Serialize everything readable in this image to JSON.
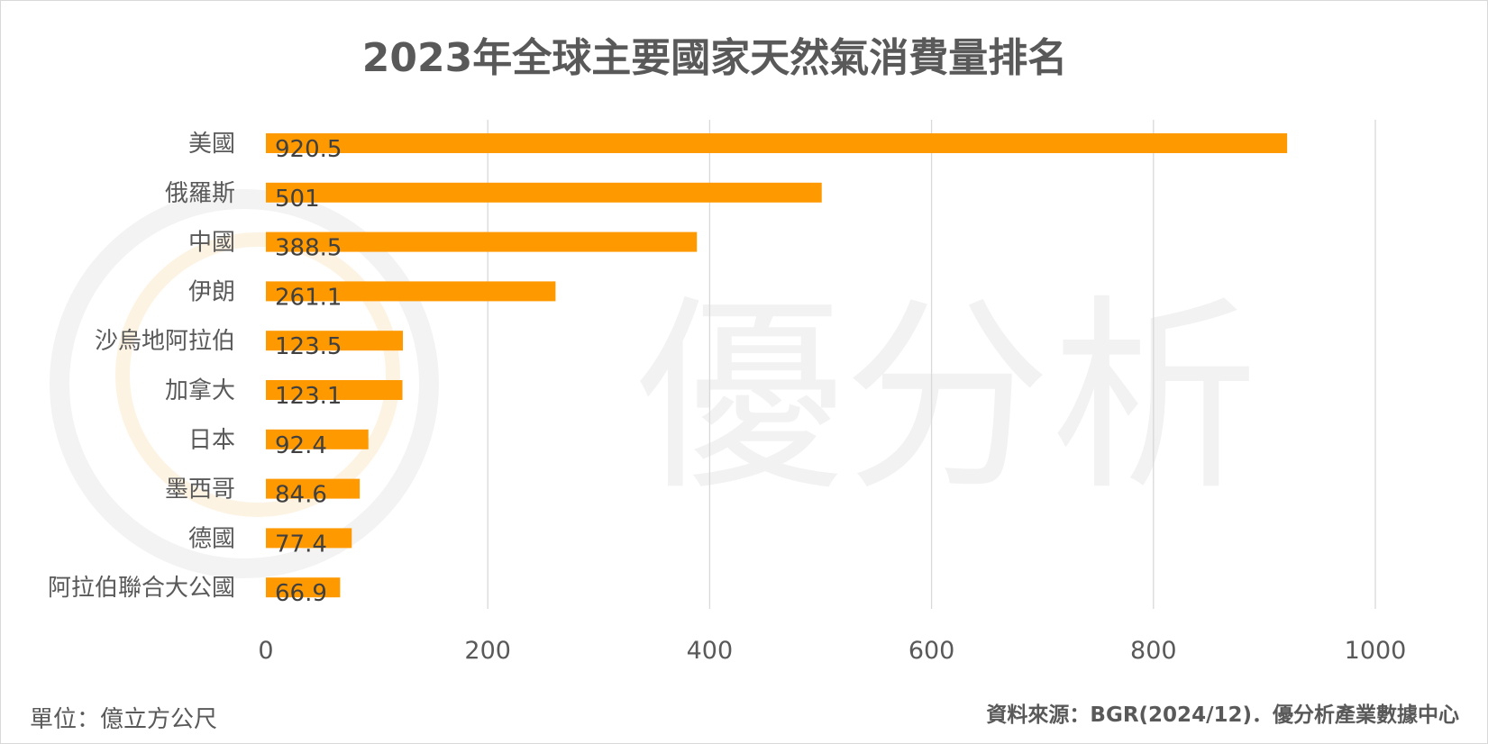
{
  "chart_data": {
    "type": "bar",
    "orientation": "horizontal",
    "title": "2023年全球主要國家天然氣消費量排名",
    "categories": [
      "美國",
      "俄羅斯",
      "中國",
      "伊朗",
      "沙烏地阿拉伯",
      "加拿大",
      "日本",
      "墨西哥",
      "德國",
      "阿拉伯聯合大公國"
    ],
    "values": [
      920.5,
      501,
      388.5,
      261.1,
      123.5,
      123.1,
      92.4,
      84.6,
      77.4,
      66.9
    ],
    "value_labels": [
      "920.5",
      "501",
      "388.5",
      "261.1",
      "123.5",
      "123.1",
      "92.4",
      "84.6",
      "77.4",
      "66.9"
    ],
    "xlim": [
      0,
      1000
    ],
    "x_ticks": [
      "0",
      "200",
      "400",
      "600",
      "800",
      "1000"
    ],
    "grid": "vertical",
    "bar_color": "#ff9900",
    "legend": "none"
  },
  "footer": {
    "unit": "單位：億立方公尺",
    "source": "資料來源：BGR(2024/12)．優分析產業數據中心"
  },
  "watermark": {
    "text": "優分析",
    "color": "#f2f2f2"
  }
}
